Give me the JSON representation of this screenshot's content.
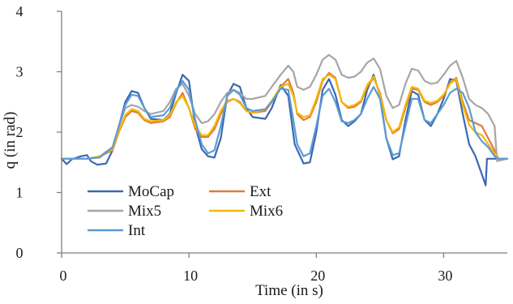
{
  "chart_data": {
    "type": "line",
    "xlabel": "Time (in s)",
    "ylabel": "q (in rad)",
    "xlim": [
      0,
      35
    ],
    "ylim": [
      0,
      4
    ],
    "xticks": [
      0,
      10,
      20,
      30
    ],
    "yticks": [
      0,
      1,
      2,
      3,
      4
    ],
    "xtick_labels": [
      "0",
      "10",
      "20",
      "30"
    ],
    "ytick_labels": [
      "0",
      "1",
      "2",
      "3",
      "4"
    ],
    "grid": false,
    "legend": {
      "placement": "lower-left",
      "columns": 2
    },
    "series": [
      {
        "name": "MoCap",
        "color": "#3a68b0",
        "points": [
          [
            0,
            1.56
          ],
          [
            0.4,
            1.47
          ],
          [
            0.8,
            1.55
          ],
          [
            1.5,
            1.6
          ],
          [
            2,
            1.62
          ],
          [
            2.3,
            1.52
          ],
          [
            2.8,
            1.46
          ],
          [
            3.5,
            1.48
          ],
          [
            4,
            1.7
          ],
          [
            4.5,
            2.1
          ],
          [
            5,
            2.5
          ],
          [
            5.5,
            2.68
          ],
          [
            6,
            2.65
          ],
          [
            6.5,
            2.4
          ],
          [
            7,
            2.22
          ],
          [
            8,
            2.2
          ],
          [
            8.5,
            2.3
          ],
          [
            9,
            2.65
          ],
          [
            9.5,
            2.95
          ],
          [
            10,
            2.85
          ],
          [
            10.5,
            2.1
          ],
          [
            11,
            1.72
          ],
          [
            11.5,
            1.6
          ],
          [
            12,
            1.58
          ],
          [
            12.5,
            1.9
          ],
          [
            13,
            2.6
          ],
          [
            13.5,
            2.8
          ],
          [
            14,
            2.75
          ],
          [
            14.5,
            2.4
          ],
          [
            15,
            2.25
          ],
          [
            16,
            2.22
          ],
          [
            16.5,
            2.4
          ],
          [
            17.2,
            2.78
          ],
          [
            17.8,
            2.6
          ],
          [
            18.3,
            1.8
          ],
          [
            19,
            1.48
          ],
          [
            19.5,
            1.5
          ],
          [
            20,
            2.0
          ],
          [
            20.5,
            2.7
          ],
          [
            21,
            2.88
          ],
          [
            21.5,
            2.62
          ],
          [
            22,
            2.2
          ],
          [
            22.5,
            2.1
          ],
          [
            23,
            2.18
          ],
          [
            23.5,
            2.3
          ],
          [
            24,
            2.7
          ],
          [
            24.5,
            2.95
          ],
          [
            25,
            2.6
          ],
          [
            25.5,
            1.9
          ],
          [
            26,
            1.55
          ],
          [
            26.5,
            1.6
          ],
          [
            27,
            2.2
          ],
          [
            27.5,
            2.68
          ],
          [
            28,
            2.62
          ],
          [
            28.5,
            2.2
          ],
          [
            29,
            2.1
          ],
          [
            29.5,
            2.3
          ],
          [
            30,
            2.55
          ],
          [
            30.5,
            2.88
          ],
          [
            31,
            2.85
          ],
          [
            31.5,
            2.3
          ],
          [
            32,
            1.8
          ],
          [
            32.5,
            1.6
          ],
          [
            33,
            1.3
          ],
          [
            33.3,
            1.12
          ],
          [
            33.4,
            1.56
          ],
          [
            35,
            1.56
          ]
        ]
      },
      {
        "name": "Ext",
        "color": "#e07b3a",
        "points": [
          [
            0,
            1.56
          ],
          [
            2,
            1.56
          ],
          [
            3,
            1.6
          ],
          [
            4,
            1.7
          ],
          [
            4.5,
            2.0
          ],
          [
            5,
            2.25
          ],
          [
            5.5,
            2.35
          ],
          [
            6,
            2.32
          ],
          [
            6.5,
            2.2
          ],
          [
            7,
            2.15
          ],
          [
            8,
            2.18
          ],
          [
            8.5,
            2.25
          ],
          [
            9,
            2.48
          ],
          [
            9.5,
            2.65
          ],
          [
            10,
            2.4
          ],
          [
            10.5,
            2.05
          ],
          [
            11,
            1.92
          ],
          [
            11.5,
            1.92
          ],
          [
            12,
            2.05
          ],
          [
            12.5,
            2.3
          ],
          [
            13,
            2.5
          ],
          [
            13.5,
            2.55
          ],
          [
            14,
            2.5
          ],
          [
            14.5,
            2.35
          ],
          [
            15,
            2.32
          ],
          [
            16,
            2.35
          ],
          [
            16.5,
            2.5
          ],
          [
            17.2,
            2.75
          ],
          [
            17.8,
            2.88
          ],
          [
            18.2,
            2.65
          ],
          [
            18.5,
            2.3
          ],
          [
            19,
            2.2
          ],
          [
            19.5,
            2.25
          ],
          [
            20,
            2.5
          ],
          [
            20.5,
            2.85
          ],
          [
            21,
            2.98
          ],
          [
            21.5,
            2.9
          ],
          [
            22,
            2.5
          ],
          [
            22.5,
            2.4
          ],
          [
            23,
            2.42
          ],
          [
            23.5,
            2.5
          ],
          [
            24,
            2.75
          ],
          [
            24.5,
            2.9
          ],
          [
            25,
            2.65
          ],
          [
            25.5,
            2.2
          ],
          [
            26,
            1.98
          ],
          [
            26.5,
            2.05
          ],
          [
            27,
            2.4
          ],
          [
            27.5,
            2.72
          ],
          [
            28,
            2.7
          ],
          [
            28.5,
            2.5
          ],
          [
            29,
            2.45
          ],
          [
            29.5,
            2.5
          ],
          [
            30,
            2.6
          ],
          [
            30.5,
            2.82
          ],
          [
            31,
            2.9
          ],
          [
            31.5,
            2.5
          ],
          [
            32,
            2.2
          ],
          [
            32.5,
            2.15
          ],
          [
            33,
            2.1
          ],
          [
            33.5,
            1.9
          ],
          [
            34,
            1.7
          ],
          [
            34.3,
            1.56
          ],
          [
            35,
            1.56
          ]
        ]
      },
      {
        "name": "Mix5",
        "color": "#a6a6a6",
        "points": [
          [
            0,
            1.56
          ],
          [
            2,
            1.56
          ],
          [
            3,
            1.6
          ],
          [
            4,
            1.75
          ],
          [
            4.5,
            2.1
          ],
          [
            5,
            2.4
          ],
          [
            5.5,
            2.45
          ],
          [
            6,
            2.42
          ],
          [
            6.5,
            2.35
          ],
          [
            7,
            2.3
          ],
          [
            8,
            2.35
          ],
          [
            8.5,
            2.5
          ],
          [
            9,
            2.72
          ],
          [
            9.5,
            2.8
          ],
          [
            10,
            2.6
          ],
          [
            10.5,
            2.3
          ],
          [
            11,
            2.15
          ],
          [
            11.5,
            2.18
          ],
          [
            12,
            2.3
          ],
          [
            12.5,
            2.5
          ],
          [
            13,
            2.65
          ],
          [
            13.5,
            2.7
          ],
          [
            14,
            2.65
          ],
          [
            14.5,
            2.55
          ],
          [
            15,
            2.55
          ],
          [
            16,
            2.6
          ],
          [
            16.5,
            2.75
          ],
          [
            17.2,
            2.95
          ],
          [
            17.8,
            3.1
          ],
          [
            18.2,
            3.0
          ],
          [
            18.5,
            2.75
          ],
          [
            19,
            2.7
          ],
          [
            19.5,
            2.75
          ],
          [
            20,
            2.95
          ],
          [
            20.5,
            3.2
          ],
          [
            21,
            3.28
          ],
          [
            21.5,
            3.2
          ],
          [
            22,
            2.95
          ],
          [
            22.5,
            2.9
          ],
          [
            23,
            2.92
          ],
          [
            23.5,
            3.0
          ],
          [
            24,
            3.15
          ],
          [
            24.5,
            3.22
          ],
          [
            25,
            3.05
          ],
          [
            25.5,
            2.6
          ],
          [
            26,
            2.4
          ],
          [
            26.5,
            2.45
          ],
          [
            27,
            2.8
          ],
          [
            27.5,
            3.05
          ],
          [
            28,
            3.02
          ],
          [
            28.5,
            2.85
          ],
          [
            29,
            2.8
          ],
          [
            29.5,
            2.82
          ],
          [
            30,
            2.95
          ],
          [
            30.5,
            3.1
          ],
          [
            31,
            3.18
          ],
          [
            31.5,
            2.9
          ],
          [
            32,
            2.55
          ],
          [
            32.5,
            2.45
          ],
          [
            33,
            2.4
          ],
          [
            33.5,
            2.3
          ],
          [
            34,
            2.1
          ],
          [
            34.2,
            1.52
          ],
          [
            35,
            1.56
          ]
        ]
      },
      {
        "name": "Mix6",
        "color": "#f5b800",
        "points": [
          [
            0,
            1.56
          ],
          [
            2,
            1.56
          ],
          [
            3,
            1.6
          ],
          [
            4,
            1.72
          ],
          [
            4.5,
            2.02
          ],
          [
            5,
            2.28
          ],
          [
            5.5,
            2.38
          ],
          [
            6,
            2.35
          ],
          [
            6.5,
            2.22
          ],
          [
            7,
            2.18
          ],
          [
            8,
            2.2
          ],
          [
            8.5,
            2.28
          ],
          [
            9,
            2.5
          ],
          [
            9.5,
            2.6
          ],
          [
            10,
            2.4
          ],
          [
            10.5,
            2.1
          ],
          [
            11,
            1.95
          ],
          [
            11.5,
            1.95
          ],
          [
            12,
            2.1
          ],
          [
            12.5,
            2.35
          ],
          [
            13,
            2.52
          ],
          [
            13.5,
            2.55
          ],
          [
            14,
            2.48
          ],
          [
            14.5,
            2.35
          ],
          [
            15,
            2.32
          ],
          [
            16,
            2.38
          ],
          [
            16.5,
            2.52
          ],
          [
            17.2,
            2.75
          ],
          [
            17.8,
            2.8
          ],
          [
            18.2,
            2.6
          ],
          [
            18.5,
            2.32
          ],
          [
            19,
            2.25
          ],
          [
            19.5,
            2.28
          ],
          [
            20,
            2.55
          ],
          [
            20.5,
            2.88
          ],
          [
            21,
            2.95
          ],
          [
            21.5,
            2.88
          ],
          [
            22,
            2.5
          ],
          [
            22.5,
            2.42
          ],
          [
            23,
            2.45
          ],
          [
            23.5,
            2.52
          ],
          [
            24,
            2.78
          ],
          [
            24.5,
            2.92
          ],
          [
            25,
            2.62
          ],
          [
            25.5,
            2.2
          ],
          [
            26,
            2.0
          ],
          [
            26.5,
            2.08
          ],
          [
            27,
            2.45
          ],
          [
            27.5,
            2.75
          ],
          [
            28,
            2.72
          ],
          [
            28.5,
            2.52
          ],
          [
            29,
            2.48
          ],
          [
            29.5,
            2.52
          ],
          [
            30,
            2.62
          ],
          [
            30.5,
            2.8
          ],
          [
            31,
            2.88
          ],
          [
            31.5,
            2.45
          ],
          [
            32,
            2.12
          ],
          [
            32.5,
            2.0
          ],
          [
            33,
            1.95
          ],
          [
            33.5,
            1.8
          ],
          [
            34,
            1.65
          ],
          [
            34.3,
            1.56
          ],
          [
            35,
            1.56
          ]
        ]
      },
      {
        "name": "Int",
        "color": "#5b9bd5",
        "points": [
          [
            0,
            1.56
          ],
          [
            2,
            1.56
          ],
          [
            3,
            1.58
          ],
          [
            4,
            1.75
          ],
          [
            4.5,
            2.1
          ],
          [
            5,
            2.45
          ],
          [
            5.5,
            2.62
          ],
          [
            6,
            2.6
          ],
          [
            6.5,
            2.4
          ],
          [
            7,
            2.25
          ],
          [
            8,
            2.28
          ],
          [
            8.5,
            2.4
          ],
          [
            9,
            2.68
          ],
          [
            9.5,
            2.85
          ],
          [
            10,
            2.7
          ],
          [
            10.5,
            2.2
          ],
          [
            11,
            1.8
          ],
          [
            11.5,
            1.65
          ],
          [
            12,
            1.7
          ],
          [
            12.5,
            2.1
          ],
          [
            13,
            2.6
          ],
          [
            13.5,
            2.7
          ],
          [
            14,
            2.62
          ],
          [
            14.5,
            2.4
          ],
          [
            15,
            2.35
          ],
          [
            16,
            2.38
          ],
          [
            16.5,
            2.5
          ],
          [
            17.2,
            2.72
          ],
          [
            17.8,
            2.7
          ],
          [
            18.2,
            2.2
          ],
          [
            18.5,
            1.8
          ],
          [
            19,
            1.6
          ],
          [
            19.5,
            1.65
          ],
          [
            20,
            2.1
          ],
          [
            20.5,
            2.6
          ],
          [
            21,
            2.72
          ],
          [
            21.5,
            2.5
          ],
          [
            22,
            2.18
          ],
          [
            22.5,
            2.15
          ],
          [
            23,
            2.2
          ],
          [
            23.5,
            2.3
          ],
          [
            24,
            2.55
          ],
          [
            24.5,
            2.75
          ],
          [
            25,
            2.55
          ],
          [
            25.5,
            1.9
          ],
          [
            26,
            1.62
          ],
          [
            26.5,
            1.65
          ],
          [
            27,
            2.1
          ],
          [
            27.5,
            2.55
          ],
          [
            28,
            2.55
          ],
          [
            28.5,
            2.2
          ],
          [
            29,
            2.15
          ],
          [
            29.5,
            2.3
          ],
          [
            30,
            2.45
          ],
          [
            30.5,
            2.65
          ],
          [
            31,
            2.72
          ],
          [
            31.5,
            2.65
          ],
          [
            32,
            2.4
          ],
          [
            32.5,
            2.0
          ],
          [
            33,
            1.85
          ],
          [
            33.5,
            1.75
          ],
          [
            34,
            1.6
          ],
          [
            34.3,
            1.56
          ],
          [
            35,
            1.56
          ]
        ]
      }
    ]
  }
}
